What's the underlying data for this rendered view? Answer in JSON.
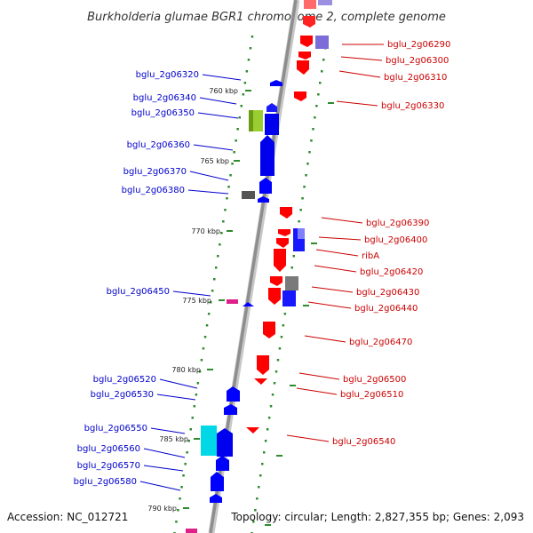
{
  "title": "Burkholderia glumae BGR1 chromosome 2, complete genome",
  "footer": {
    "accession": "Accession: NC_012721",
    "summary": "Topology: circular; Length: 2,827,355 bp; Genes: 2,093"
  },
  "colors": {
    "forward_gene": "#0000ff",
    "reverse_gene": "#ff0000",
    "left_label": "#0000cc",
    "right_label": "#cc0000",
    "backbone": "#9a9a9a",
    "tick": "#2e8b2e"
  },
  "kbp_labels": [
    "760 kbp",
    "765 kbp",
    "770 kbp",
    "775 kbp",
    "780 kbp",
    "785 kbp",
    "790 kbp"
  ],
  "left_labels": [
    "bglu_2g06320",
    "bglu_2g06340",
    "bglu_2g06350",
    "bglu_2g06360",
    "bglu_2g06370",
    "bglu_2g06380",
    "bglu_2g06450",
    "bglu_2g06520",
    "bglu_2g06530",
    "bglu_2g06550",
    "bglu_2g06560",
    "bglu_2g06570",
    "bglu_2g06580"
  ],
  "right_labels": [
    "bglu_2g06290",
    "bglu_2g06300",
    "bglu_2g06310",
    "bglu_2g06330",
    "bglu_2g06390",
    "bglu_2g06400",
    "ribA",
    "bglu_2g06420",
    "bglu_2g06430",
    "bglu_2g06440",
    "bglu_2g06470",
    "bglu_2g06500",
    "bglu_2g06510",
    "bglu_2g06540"
  ]
}
